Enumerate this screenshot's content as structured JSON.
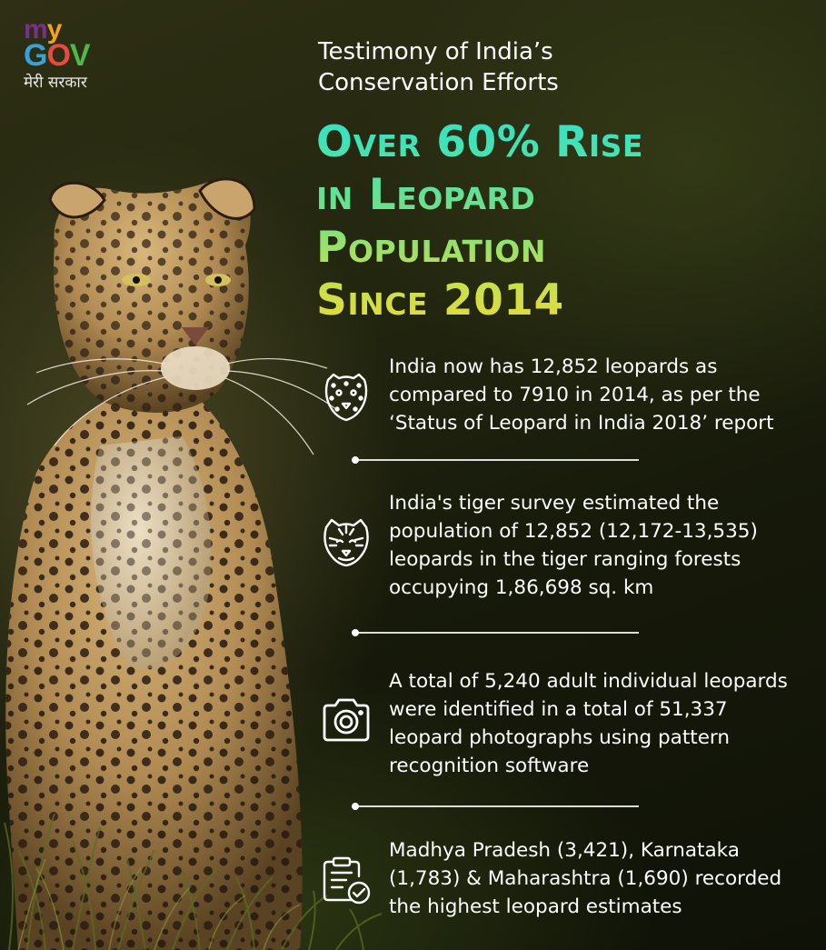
{
  "logo": {
    "my_m": "m",
    "my_y": "y",
    "gov_g": "G",
    "gov_o": "O",
    "gov_v": "V",
    "tagline": "मेरी सरकार"
  },
  "subtitle_line1": "Testimony of India’s",
  "subtitle_line2": "Conservation Efforts",
  "headline": {
    "line1": "Over 60% Rise",
    "line2": "in Leopard",
    "line3": "Population",
    "line4": "Since 2014"
  },
  "facts": [
    {
      "icon": "leopard-face-icon",
      "text": "India now has 12,852 leopards as compared to 7910 in 2014, as per the ‘Status of Leopard in India 2018’ report"
    },
    {
      "icon": "tiger-face-icon",
      "text": "India's tiger survey estimated the population of 12,852 (12,172-13,535) leopards in the tiger ranging forests occupying 1,86,698 sq. km"
    },
    {
      "icon": "camera-icon",
      "text": "A total of 5,240 adult individual leopards were identified in a total of 51,337 leopard photographs using pattern recognition software"
    },
    {
      "icon": "clipboard-check-icon",
      "text": "Madhya Pradesh (3,421), Karnataka (1,783) & Maharashtra (1,690) recorded the highest leopard estimates"
    }
  ],
  "colors": {
    "headline_top": "#2fe3c8",
    "headline_bottom": "#e6da3c",
    "text": "#ffffff",
    "background": "#1c1f0c"
  }
}
